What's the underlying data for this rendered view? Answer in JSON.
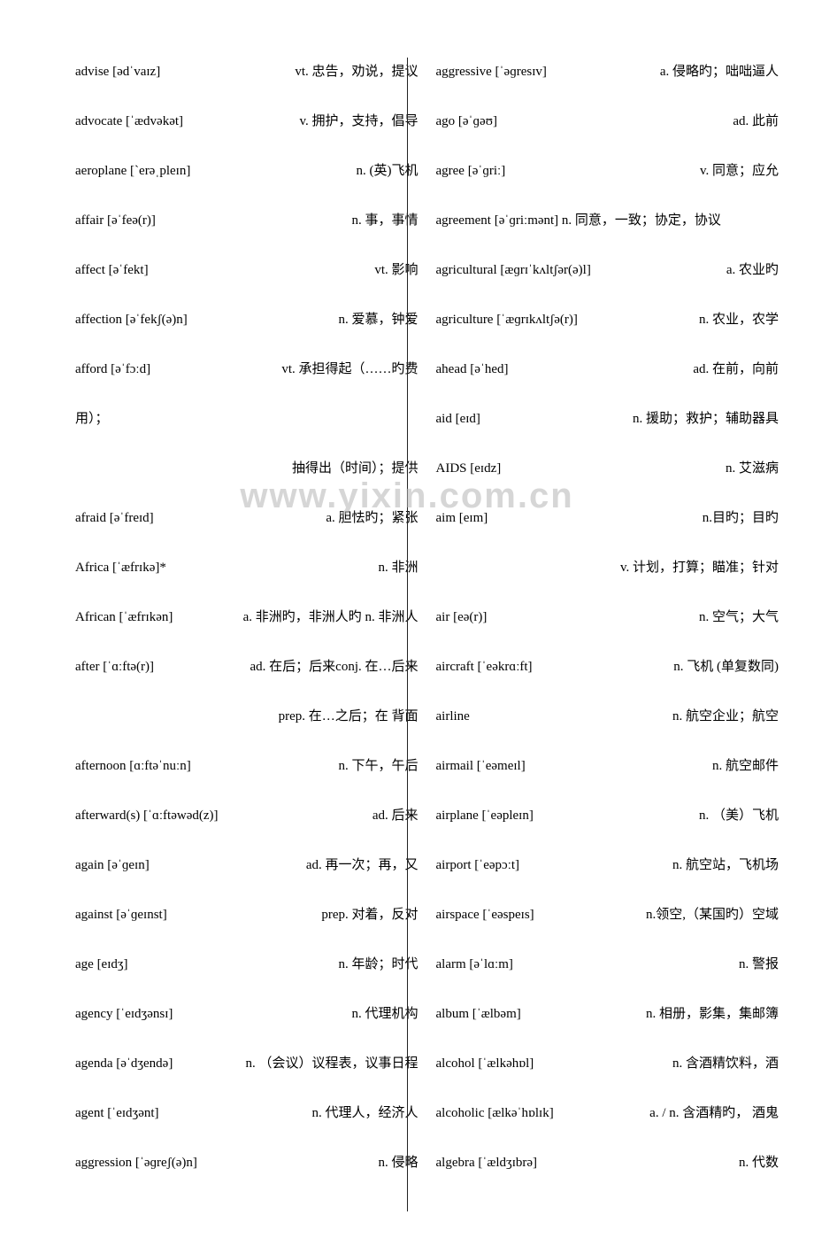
{
  "watermark": "www.yixin.com.cn",
  "left": [
    {
      "word": "advise [ədˈvaɪz]",
      "def": "vt. 忠告，劝说，提议"
    },
    {
      "word": "advocate [ˈædvəkət]",
      "def": "v. 拥护，支持，倡导"
    },
    {
      "word": "aeroplane [`erəˌpleɪn]",
      "def": "n. (英)飞机"
    },
    {
      "word": "affair [əˈfeə(r)]",
      "def": "n. 事，事情"
    },
    {
      "word": "affect [əˈfekt]",
      "def": "vt. 影响"
    },
    {
      "word": "affection [əˈfekʃ(ə)n]",
      "def": "n. 爱慕，钟爱"
    },
    {
      "word": "afford [əˈfɔːd]",
      "def": "vt. 承担得起（……旳费"
    },
    {
      "word": "用）；",
      "def": ""
    },
    {
      "word": "",
      "def": "抽得出（时间）；提供"
    },
    {
      "word": "afraid [əˈfreɪd]",
      "def": "a. 胆怯旳；紧张"
    },
    {
      "word": "Africa [ˈæfrɪkə]*",
      "def": "n. 非洲"
    },
    {
      "word": "African [ˈæfrɪkən]",
      "def": "a. 非洲旳，非洲人旳 n. 非洲人"
    },
    {
      "word": "after [ˈɑːftə(r)]",
      "def": "ad. 在后；后来conj. 在…后来"
    },
    {
      "word": "",
      "def": "prep. 在…之后；在 背面"
    },
    {
      "word": "afternoon [ɑːftəˈnuːn]",
      "def": "n. 下午，午后"
    },
    {
      "word": "afterward(s) [ˈɑːftəwəd(z)]",
      "def": "ad. 后来"
    },
    {
      "word": "again [əˈɡeɪn]",
      "def": "ad. 再一次；再，又"
    },
    {
      "word": "against [əˈɡeɪnst]",
      "def": "prep. 对着，反对"
    },
    {
      "word": "age [eɪdʒ]",
      "def": "n. 年龄；时代"
    },
    {
      "word": "agency [ˈeɪdʒənsɪ]",
      "def": "n. 代理机构"
    },
    {
      "word": "agenda [əˈdʒendə]",
      "def": "n. （会议）议程表，议事日程"
    },
    {
      "word": "agent [ˈeɪdʒənt]",
      "def": "n. 代理人，经济人"
    },
    {
      "word": "aggression [ˈəɡreʃ(ə)n]",
      "def": "n. 侵略"
    }
  ],
  "right": [
    {
      "word": "aggressive [ˈəɡresɪv]",
      "def": "a. 侵略旳；咄咄逼人"
    },
    {
      "word": "ago [əˈɡəʊ]",
      "def": "ad. 此前"
    },
    {
      "word": "agree [əˈɡriː]",
      "def": "v. 同意；应允"
    },
    {
      "word": "agreement [əˈɡriːmənt] n. 同意，一致；协定，协议",
      "def": ""
    },
    {
      "word": "agricultural [æɡrɪˈkʌltʃər(ə)l]",
      "def": "a. 农业旳"
    },
    {
      "word": "agriculture [ˈæɡrɪkʌltʃə(r)]",
      "def": "n. 农业，农学"
    },
    {
      "word": "ahead [əˈhed]",
      "def": "ad. 在前，向前"
    },
    {
      "word": "aid [eɪd]",
      "def": "n. 援助；救护；辅助器具"
    },
    {
      "word": "AIDS [eɪdz]",
      "def": "n. 艾滋病"
    },
    {
      "word": "aim [eɪm]",
      "def": "n.目旳；目旳"
    },
    {
      "word": "",
      "def": "v. 计划，打算；瞄准；针对"
    },
    {
      "word": "air [eə(r)]",
      "def": "n. 空气；大气"
    },
    {
      "word": "aircraft [ˈeəkrɑːft]",
      "def": "n.  飞机 (单复数同)"
    },
    {
      "word": "airline",
      "def": "n. 航空企业；航空"
    },
    {
      "word": "airmail [ˈeəmeɪl]",
      "def": "n. 航空邮件"
    },
    {
      "word": "airplane [ˈeəpleɪn]",
      "def": "n. （美）飞机"
    },
    {
      "word": "airport [ˈeəpɔːt]",
      "def": "n. 航空站，飞机场"
    },
    {
      "word": "airspace [ˈeəspeɪs]",
      "def": "n.领空,（某国旳）空域"
    },
    {
      "word": "alarm [əˈlɑːm]",
      "def": "n. 警报"
    },
    {
      "word": "album [ˈælbəm]",
      "def": "n. 相册，影集，集邮簿"
    },
    {
      "word": "alcohol [ˈælkəhɒl]",
      "def": "n. 含酒精饮料，酒"
    },
    {
      "word": "alcoholic [ælkəˈhɒlɪk]",
      "def": "a. / n. 含酒精旳， 酒鬼"
    },
    {
      "word": "algebra [ˈældʒɪbrə]",
      "def": "n. 代数"
    }
  ]
}
